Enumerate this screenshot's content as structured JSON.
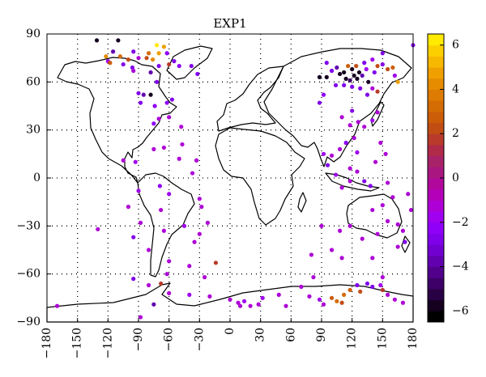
{
  "chart_data": {
    "type": "scatter",
    "title": "EXP1",
    "xlabel": "",
    "ylabel": "",
    "xlim": [
      -180,
      180
    ],
    "ylim": [
      -90,
      90
    ],
    "xticks": [
      "−180",
      "−150",
      "−120",
      "−90",
      "−60",
      "−30",
      "0",
      "30",
      "60",
      "90",
      "120",
      "150",
      "180"
    ],
    "yticks": [
      "90",
      "60",
      "30",
      "0",
      "−30",
      "−60",
      "−90"
    ],
    "grid": true,
    "colorbar": {
      "range": [
        -6.5,
        6.5
      ],
      "ticks": [
        "6",
        "4",
        "2",
        "0",
        "−2",
        "−4",
        "−6"
      ],
      "levels": [
        -6.5,
        -6,
        -5.5,
        -5,
        -4.5,
        -4,
        -3.5,
        -3,
        -2.5,
        -2,
        -1.5,
        -1,
        -0.5,
        0,
        0.5,
        1,
        1.5,
        2,
        2.5,
        3,
        3.5,
        4,
        4.5,
        5,
        5.5,
        6,
        6.5
      ],
      "colors": [
        "#000000",
        "#150020",
        "#2a0045",
        "#3e0068",
        "#52008c",
        "#6200b0",
        "#7100d0",
        "#8000ea",
        "#9000f8",
        "#a000ef",
        "#ae00d6",
        "#b400b8",
        "#b1089c",
        "#aa1680",
        "#a8226a",
        "#b02a4a",
        "#b93a2a",
        "#c24d14",
        "#cb5d08",
        "#d46c04",
        "#de7b02",
        "#e68c00",
        "#efa000",
        "#f7b800",
        "#fcd000",
        "#ffea00",
        "#ffff00"
      ]
    },
    "points": [
      {
        "lon": -131,
        "lat": 86,
        "v": -6
      },
      {
        "lon": -110,
        "lat": 86,
        "v": -6
      },
      {
        "lon": -72,
        "lat": 83,
        "v": 6
      },
      {
        "lon": -65,
        "lat": 82,
        "v": 4.5
      },
      {
        "lon": -115,
        "lat": 79,
        "v": -4
      },
      {
        "lon": -95,
        "lat": 79,
        "v": -3
      },
      {
        "lon": -80,
        "lat": 78,
        "v": 3
      },
      {
        "lon": -70,
        "lat": 78,
        "v": 4.5
      },
      {
        "lon": -62,
        "lat": 78,
        "v": -2.5
      },
      {
        "lon": -122,
        "lat": 76,
        "v": 4
      },
      {
        "lon": -108,
        "lat": 76,
        "v": 3
      },
      {
        "lon": -100,
        "lat": 74,
        "v": 2
      },
      {
        "lon": -90,
        "lat": 75,
        "v": -1.5
      },
      {
        "lon": -82,
        "lat": 75,
        "v": 2
      },
      {
        "lon": -76,
        "lat": 74,
        "v": 4
      },
      {
        "lon": -120,
        "lat": 73,
        "v": -2
      },
      {
        "lon": -105,
        "lat": 71,
        "v": -3
      },
      {
        "lon": -118,
        "lat": 72,
        "v": 2.5
      },
      {
        "lon": -55,
        "lat": 73,
        "v": -3
      },
      {
        "lon": -50,
        "lat": 70,
        "v": -2.5
      },
      {
        "lon": -38,
        "lat": 70,
        "v": -3
      },
      {
        "lon": -32,
        "lat": 65,
        "v": -3
      },
      {
        "lon": -70,
        "lat": 70,
        "v": -3
      },
      {
        "lon": -60,
        "lat": 71,
        "v": 1.5
      },
      {
        "lon": -96,
        "lat": 69,
        "v": -3
      },
      {
        "lon": -78,
        "lat": 66,
        "v": -4
      },
      {
        "lon": -95,
        "lat": 67,
        "v": -1.5
      },
      {
        "lon": -72,
        "lat": 60,
        "v": -3
      },
      {
        "lon": -90,
        "lat": 53,
        "v": -3
      },
      {
        "lon": -85,
        "lat": 52,
        "v": -4
      },
      {
        "lon": -78,
        "lat": 52,
        "v": -6
      },
      {
        "lon": -88,
        "lat": 47,
        "v": -3
      },
      {
        "lon": -74,
        "lat": 45,
        "v": -2.5
      },
      {
        "lon": -62,
        "lat": 47,
        "v": -2.5
      },
      {
        "lon": -57,
        "lat": 49,
        "v": -3
      },
      {
        "lon": -60,
        "lat": 38,
        "v": -1.5
      },
      {
        "lon": -48,
        "lat": 32,
        "v": -1.5
      },
      {
        "lon": -70,
        "lat": 37,
        "v": -1.5
      },
      {
        "lon": -75,
        "lat": 34,
        "v": -2.5
      },
      {
        "lon": -47,
        "lat": 21,
        "v": -1.5
      },
      {
        "lon": -65,
        "lat": 19,
        "v": -1.5
      },
      {
        "lon": -75,
        "lat": 18,
        "v": -1.5
      },
      {
        "lon": -50,
        "lat": 12,
        "v": -1.5
      },
      {
        "lon": -33,
        "lat": 11,
        "v": -1.5
      },
      {
        "lon": -93,
        "lat": 10,
        "v": -2
      },
      {
        "lon": -105,
        "lat": 11,
        "v": -1.5
      },
      {
        "lon": -37,
        "lat": 3,
        "v": -1.5
      },
      {
        "lon": -69,
        "lat": -5,
        "v": -2.5
      },
      {
        "lon": -90,
        "lat": -8,
        "v": -2
      },
      {
        "lon": -60,
        "lat": -10,
        "v": -2
      },
      {
        "lon": -30,
        "lat": -13,
        "v": -1.5
      },
      {
        "lon": -100,
        "lat": -18,
        "v": -1.5
      },
      {
        "lon": -28,
        "lat": -18,
        "v": -1.5
      },
      {
        "lon": -68,
        "lat": -20,
        "v": -1.5
      },
      {
        "lon": -88,
        "lat": -28,
        "v": -1.5
      },
      {
        "lon": -130,
        "lat": -32,
        "v": -1.5
      },
      {
        "lon": -22,
        "lat": -28,
        "v": -1.5
      },
      {
        "lon": -45,
        "lat": -30,
        "v": -2
      },
      {
        "lon": -65,
        "lat": -33,
        "v": -1.5
      },
      {
        "lon": -30,
        "lat": -35,
        "v": -1.5
      },
      {
        "lon": -95,
        "lat": -37,
        "v": -3
      },
      {
        "lon": -35,
        "lat": -40,
        "v": -1.5
      },
      {
        "lon": -80,
        "lat": -45,
        "v": -1.5
      },
      {
        "lon": -60,
        "lat": -52,
        "v": -1.5
      },
      {
        "lon": -40,
        "lat": -55,
        "v": -1.5
      },
      {
        "lon": -14,
        "lat": -53,
        "v": 1.5
      },
      {
        "lon": -25,
        "lat": -62,
        "v": -1.5
      },
      {
        "lon": -62,
        "lat": -60,
        "v": -1.5
      },
      {
        "lon": -95,
        "lat": -63,
        "v": -3
      },
      {
        "lon": -80,
        "lat": -67,
        "v": -1.5
      },
      {
        "lon": -68,
        "lat": -66,
        "v": 1.5
      },
      {
        "lon": -60,
        "lat": -72,
        "v": -1.5
      },
      {
        "lon": -40,
        "lat": -73,
        "v": -2
      },
      {
        "lon": -20,
        "lat": -74,
        "v": -1.5
      },
      {
        "lon": -75,
        "lat": -79,
        "v": -4
      },
      {
        "lon": -88,
        "lat": -87,
        "v": -1.5
      },
      {
        "lon": 0,
        "lat": -76,
        "v": -1.5
      },
      {
        "lon": 8,
        "lat": -78,
        "v": -1.5
      },
      {
        "lon": 10,
        "lat": -80,
        "v": -1.5
      },
      {
        "lon": 14,
        "lat": -77,
        "v": -2
      },
      {
        "lon": 20,
        "lat": -80,
        "v": -1.5
      },
      {
        "lon": 28,
        "lat": -79,
        "v": -1.5
      },
      {
        "lon": 32,
        "lat": -75,
        "v": -2
      },
      {
        "lon": 48,
        "lat": -73,
        "v": -1.5
      },
      {
        "lon": 55,
        "lat": -80,
        "v": -1.5
      },
      {
        "lon": 70,
        "lat": -68,
        "v": -1.5
      },
      {
        "lon": 78,
        "lat": -74,
        "v": -1.5
      },
      {
        "lon": 88,
        "lat": -76,
        "v": -2
      },
      {
        "lon": 92,
        "lat": -79,
        "v": -1.5
      },
      {
        "lon": 100,
        "lat": -75,
        "v": 2.5
      },
      {
        "lon": 105,
        "lat": -77,
        "v": 3
      },
      {
        "lon": 110,
        "lat": -78,
        "v": 2
      },
      {
        "lon": 112,
        "lat": -73,
        "v": 3
      },
      {
        "lon": 118,
        "lat": -70,
        "v": 2.5
      },
      {
        "lon": 125,
        "lat": -67,
        "v": -3
      },
      {
        "lon": 128,
        "lat": -71,
        "v": 2
      },
      {
        "lon": 135,
        "lat": -66,
        "v": -3
      },
      {
        "lon": 140,
        "lat": -68,
        "v": -3
      },
      {
        "lon": 148,
        "lat": -67,
        "v": -2
      },
      {
        "lon": 150,
        "lat": -70,
        "v": 1.5
      },
      {
        "lon": 155,
        "lat": -73,
        "v": -1.5
      },
      {
        "lon": 162,
        "lat": -76,
        "v": -1.5
      },
      {
        "lon": 170,
        "lat": -78,
        "v": -1.5
      },
      {
        "lon": -170,
        "lat": -80,
        "v": -1.5
      },
      {
        "lon": 82,
        "lat": -62,
        "v": -1.5
      },
      {
        "lon": 150,
        "lat": -62,
        "v": -1.5
      },
      {
        "lon": 95,
        "lat": 72,
        "v": -3
      },
      {
        "lon": 100,
        "lat": 67,
        "v": -3
      },
      {
        "lon": 105,
        "lat": 69,
        "v": -4
      },
      {
        "lon": 108,
        "lat": 65,
        "v": -6
      },
      {
        "lon": 112,
        "lat": 66,
        "v": -6
      },
      {
        "lon": 114,
        "lat": 62,
        "v": -6
      },
      {
        "lon": 116,
        "lat": 70,
        "v": 2.5
      },
      {
        "lon": 118,
        "lat": 61,
        "v": -5
      },
      {
        "lon": 120,
        "lat": 68,
        "v": -6
      },
      {
        "lon": 122,
        "lat": 64,
        "v": -6
      },
      {
        "lon": 124,
        "lat": 70,
        "v": 2
      },
      {
        "lon": 125,
        "lat": 62,
        "v": -6
      },
      {
        "lon": 127,
        "lat": 66,
        "v": -6
      },
      {
        "lon": 130,
        "lat": 64,
        "v": -4
      },
      {
        "lon": 132,
        "lat": 72,
        "v": -3
      },
      {
        "lon": 134,
        "lat": 68,
        "v": -2
      },
      {
        "lon": 136,
        "lat": 60,
        "v": -6
      },
      {
        "lon": 140,
        "lat": 74,
        "v": -2
      },
      {
        "lon": 142,
        "lat": 66,
        "v": -3
      },
      {
        "lon": 145,
        "lat": 70,
        "v": 2
      },
      {
        "lon": 150,
        "lat": 71,
        "v": -3
      },
      {
        "lon": 155,
        "lat": 68,
        "v": 2
      },
      {
        "lon": 160,
        "lat": 69,
        "v": 2.5
      },
      {
        "lon": 162,
        "lat": 64,
        "v": -2
      },
      {
        "lon": 165,
        "lat": 60,
        "v": 4.5
      },
      {
        "lon": 140,
        "lat": 56,
        "v": -1.5
      },
      {
        "lon": 145,
        "lat": 54,
        "v": 1.5
      },
      {
        "lon": 150,
        "lat": 78,
        "v": -3
      },
      {
        "lon": 135,
        "lat": 52,
        "v": -3
      },
      {
        "lon": 128,
        "lat": 56,
        "v": -3
      },
      {
        "lon": 120,
        "lat": 57,
        "v": -3
      },
      {
        "lon": 112,
        "lat": 58,
        "v": -3
      },
      {
        "lon": 104,
        "lat": 58,
        "v": -3
      },
      {
        "lon": 95,
        "lat": 63,
        "v": -6
      },
      {
        "lon": 88,
        "lat": 63,
        "v": -6
      },
      {
        "lon": 180,
        "lat": 83,
        "v": -3
      },
      {
        "lon": 120,
        "lat": 42,
        "v": -3
      },
      {
        "lon": 110,
        "lat": 38,
        "v": -1.5
      },
      {
        "lon": 118,
        "lat": 33,
        "v": -1.5
      },
      {
        "lon": 126,
        "lat": 35,
        "v": -1.5
      },
      {
        "lon": 132,
        "lat": 32,
        "v": -1.5
      },
      {
        "lon": 140,
        "lat": 36,
        "v": -2
      },
      {
        "lon": 145,
        "lat": 41,
        "v": -1.5
      },
      {
        "lon": 122,
        "lat": 25,
        "v": -1.5
      },
      {
        "lon": 114,
        "lat": 22,
        "v": -2.5
      },
      {
        "lon": 108,
        "lat": 18,
        "v": -1.5
      },
      {
        "lon": 100,
        "lat": 14,
        "v": -1.5
      },
      {
        "lon": 96,
        "lat": 8,
        "v": -3
      },
      {
        "lon": 104,
        "lat": 2,
        "v": -2
      },
      {
        "lon": 118,
        "lat": 6,
        "v": -1.5
      },
      {
        "lon": 125,
        "lat": 4,
        "v": -1.5
      },
      {
        "lon": 118,
        "lat": -2,
        "v": -1.5
      },
      {
        "lon": 110,
        "lat": -6,
        "v": -1.5
      },
      {
        "lon": 132,
        "lat": -2,
        "v": -3
      },
      {
        "lon": 138,
        "lat": -5,
        "v": -3
      },
      {
        "lon": 143,
        "lat": 10,
        "v": -1.5
      },
      {
        "lon": 148,
        "lat": 22,
        "v": -1.5
      },
      {
        "lon": 153,
        "lat": 15,
        "v": -1.5
      },
      {
        "lon": 125,
        "lat": 16,
        "v": -2
      },
      {
        "lon": 92,
        "lat": 15,
        "v": -2
      },
      {
        "lon": 92,
        "lat": 52,
        "v": -2.5
      },
      {
        "lon": 88,
        "lat": 47,
        "v": -3
      },
      {
        "lon": 155,
        "lat": -3,
        "v": -1.5
      },
      {
        "lon": 160,
        "lat": -12,
        "v": -1.5
      },
      {
        "lon": 150,
        "lat": -17,
        "v": -1.5
      },
      {
        "lon": 140,
        "lat": -20,
        "v": -1.5
      },
      {
        "lon": 155,
        "lat": -27,
        "v": -1.5
      },
      {
        "lon": 165,
        "lat": -29,
        "v": -1.5
      },
      {
        "lon": 170,
        "lat": -33,
        "v": -1.5
      },
      {
        "lon": 165,
        "lat": -43,
        "v": -1.5
      },
      {
        "lon": 172,
        "lat": -40,
        "v": -3
      },
      {
        "lon": 145,
        "lat": -35,
        "v": -1.5
      },
      {
        "lon": 130,
        "lat": -38,
        "v": -1.5
      },
      {
        "lon": 118,
        "lat": -30,
        "v": -1.5
      },
      {
        "lon": 108,
        "lat": -33,
        "v": -1.5
      },
      {
        "lon": 100,
        "lat": -45,
        "v": -1.5
      },
      {
        "lon": 90,
        "lat": -30,
        "v": -1.5
      },
      {
        "lon": 80,
        "lat": -48,
        "v": -1.5
      },
      {
        "lon": 110,
        "lat": -50,
        "v": -1.5
      },
      {
        "lon": 140,
        "lat": -50,
        "v": -1.5
      },
      {
        "lon": 175,
        "lat": -10,
        "v": -1.5
      },
      {
        "lon": 178,
        "lat": -20,
        "v": -1.5
      }
    ]
  }
}
